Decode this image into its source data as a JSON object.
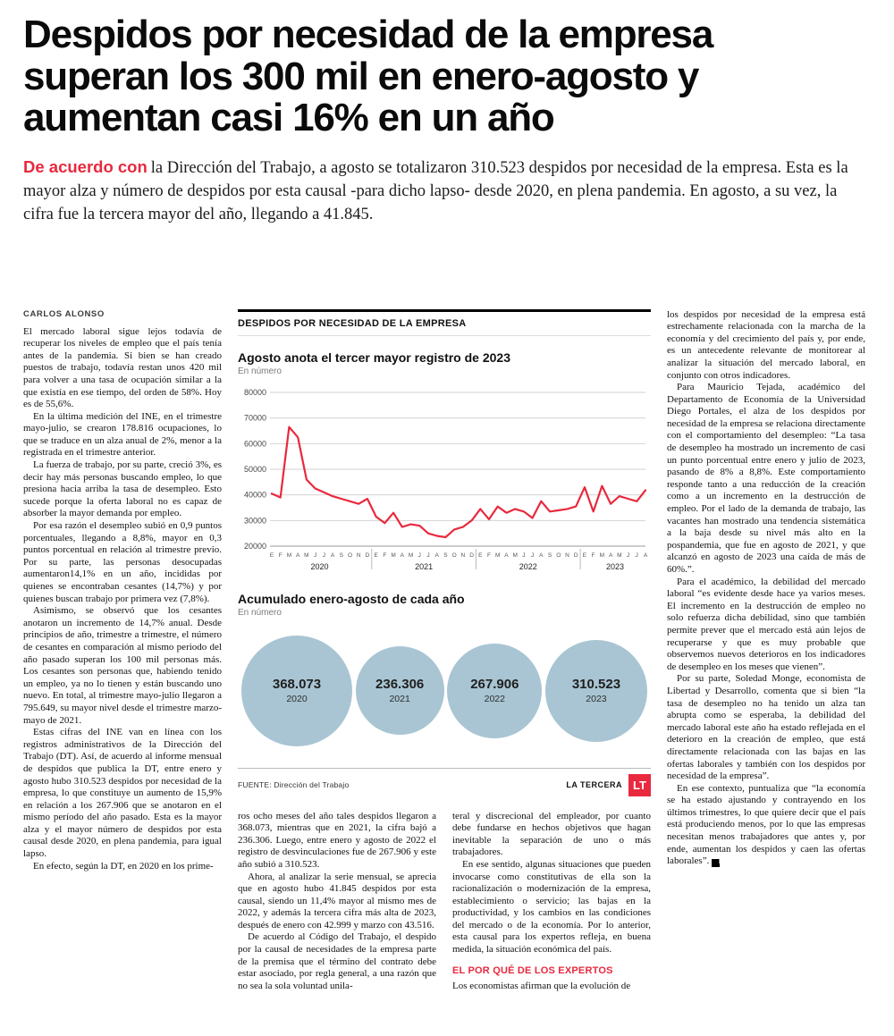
{
  "colors": {
    "accent_red": "#e8293e",
    "bubble_blue": "#a9c5d3"
  },
  "headline": "Despidos por necesidad de la empresa superan los 300 mil en enero-agosto y aumentan casi 16% en un año",
  "lead": {
    "highlight": "De acuerdo con",
    "text": "la Dirección del Trabajo, a agosto se totalizaron 310.523 despidos por necesidad de la empresa. Esta es la mayor alza y número de despidos por esta causal -para dicho lapso- desde 2020, en plena pandemia. En agosto, a su vez, la cifra fue la tercera mayor del año, llegando a 41.845."
  },
  "byline": "CARLOS ALONSO",
  "end_mark": "P",
  "columns": {
    "col1": [
      "El mercado laboral sigue lejos todavía de recuperar los niveles de empleo que el país tenía antes de la pandemia. Si bien se han creado puestos de trabajo, todavía restan unos 420 mil para volver a una tasa de ocupación similar a la que existía en ese tiempo, del orden de 58%. Hoy es de 55,6%.",
      "En la última medición del INE, en el trimestre mayo-julio, se crearon 178.816 ocupaciones, lo que se traduce en un alza anual de 2%, menor a la registrada en el trimestre anterior.",
      "La fuerza de trabajo, por su parte, creció 3%, es decir hay más personas buscando empleo, lo que presiona hacia arriba la tasa de desempleo. Esto sucede porque la oferta laboral no es capaz de absorber la mayor demanda por empleo.",
      "Por esa razón el desempleo subió en 0,9 puntos porcentuales, llegando a 8,8%, mayor en 0,3 puntos porcentual en relación al trimestre previo. Por su parte, las personas desocupadas aumentaron14,1% en un año, incididas por quienes se encontraban cesantes (14,7%) y por quienes buscan trabajo por primera vez (7,8%).",
      "Asimismo, se observó que los cesantes anotaron un incremento de 14,7% anual. Desde principios de año, trimestre a trimestre, el número de cesantes en comparación al mismo periodo del año pasado superan los 100 mil personas más. Los cesantes son personas que, habiendo tenido un empleo, ya no lo tienen y están buscando uno nuevo. En total, al trimestre mayo-julio llegaron a 795.649, su mayor nivel desde el trimestre marzo-mayo de 2021.",
      "Estas cifras del INE van en línea con los registros administrativos de la Dirección del Trabajo (DT). Así, de acuerdo al informe mensual de despidos que publica la DT, entre enero y agosto hubo 310.523 despidos por necesidad de la empresa, lo que constituye un aumento de 15,9% en relación a los 267.906 que se anotaron en el mismo período del año pasado. Esta es la mayor alza y el mayor número de despidos por esta causal desde 2020, en plena pandemia, para igual lapso.",
      "En efecto, según la DT, en 2020 en los prime-"
    ],
    "col2": [
      "ros ocho meses del año tales despidos llegaron a 368.073, mientras que en 2021, la cifra bajó a 236.306. Luego, entre enero y agosto de 2022 el registro de desvinculaciones fue de 267.906 y este año subió a 310.523.",
      "Ahora, al analizar la serie mensual, se aprecia que en agosto hubo 41.845 despidos por esta causal, siendo un 11,4% mayor al mismo mes de 2022, y además la tercera cifra más alta de 2023, después de enero con 42.999 y marzo con 43.516.",
      "De acuerdo al Código del Trabajo, el despido por la causal de necesidades de la empresa parte de la premisa que el término del contrato debe estar asociado, por regla general, a una razón que no sea la sola voluntad unila-"
    ],
    "col3_pre": [
      "teral y discrecional del empleador, por cuanto debe fundarse en hechos objetivos que hagan inevitable la separación de uno o más trabajadores.",
      "En ese sentido, algunas situaciones que pueden invocarse como constitutivas de ella son la racionalización o modernización de la empresa, establecimiento o servicio; las bajas en la productividad, y los cambios en las condiciones del mercado o de la economía. Por lo anterior, esta causal para los expertos refleja, en buena medida, la situación económica del país."
    ],
    "col3_heading": "EL POR QUÉ DE LOS EXPERTOS",
    "col3_post": [
      "Los economistas afirman que la evolución de"
    ],
    "col4": [
      "los despidos por necesidad de la empresa está estrechamente relacionada con la marcha de la economía y del crecimiento del país y, por ende, es un antecedente relevante de monitorear al analizar la situación del mercado laboral, en conjunto con otros indicadores.",
      "Para Mauricio Tejada, académico del Departamento de Economía de la Universidad Diego Portales, el alza de los despidos por necesidad de la empresa se relaciona directamente con el comportamiento del desempleo: “La tasa de desempleo ha mostrado un incremento de casi un punto porcentual entre enero y julio de 2023, pasando de 8% a 8,8%. Este comportamiento responde tanto a una reducción de la creación como a un incremento en la destrucción de empleo. Por el lado de la demanda de trabajo, las vacantes han mostrado una tendencia sistemática a la baja desde su nivel más alto en la pospandemia, que fue en agosto de 2021, y que alcanzó en agosto de 2023 una caída de más de 60%.”.",
      "Para el académico, la debilidad del mercado laboral “es evidente desde hace ya varios meses. El incremento en la destrucción de empleo no solo refuerza dicha debilidad, sino que también permite prever que el mercado está aún lejos de recuperarse y que es muy probable que observemos nuevos deterioros en los indicadores de desempleo en los meses que vienen”.",
      "Por su parte, Soledad Monge, economista de Libertad y Desarrollo, comenta que si bien “la tasa de desempleo no ha tenido un alza tan abrupta como se esperaba, la debilidad del mercado laboral este año ha estado reflejada en el deterioro en la creación de empleo, que está directamente relacionada con las bajas en las ofertas laborales y también con los despidos por necesidad de la empresa”.",
      "En ese contexto, puntualiza que “la economía se ha estado ajustando y contrayendo en los últimos trimestres, lo que quiere decir que el país está produciendo menos, por lo que las empresas necesitan menos trabajadores que antes y, por ende, aumentan los despidos y caen las ofertas laborales”."
    ]
  },
  "chart": {
    "kicker": "DESPIDOS POR NECESIDAD DE LA EMPRESA",
    "source": "FUENTE: Dirección del Trabajo",
    "brand": "LA TERCERA",
    "brand_logo": "LT"
  },
  "chart_data": [
    {
      "type": "line",
      "title": "Agosto anota el tercer mayor registro de 2023",
      "unit": "En número",
      "ylim": [
        20000,
        80000
      ],
      "ytick_step": 10000,
      "grid": true,
      "line_color": "#e8293e",
      "x_labels": [
        "E",
        "F",
        "M",
        "A",
        "M",
        "J",
        "J",
        "A",
        "S",
        "O",
        "N",
        "D",
        "E",
        "F",
        "M",
        "A",
        "M",
        "J",
        "J",
        "A",
        "S",
        "O",
        "N",
        "D",
        "E",
        "F",
        "M",
        "A",
        "M",
        "J",
        "J",
        "A",
        "S",
        "O",
        "N",
        "D",
        "E",
        "F",
        "M",
        "A",
        "M",
        "J",
        "J",
        "A"
      ],
      "year_groups": [
        {
          "label": "2020",
          "from": 0,
          "to": 11
        },
        {
          "label": "2021",
          "from": 12,
          "to": 23
        },
        {
          "label": "2022",
          "from": 24,
          "to": 35
        },
        {
          "label": "2023",
          "from": 36,
          "to": 43
        }
      ],
      "values": [
        40500,
        39000,
        66500,
        62500,
        46000,
        42500,
        41000,
        39500,
        38500,
        37500,
        36500,
        38500,
        31500,
        29000,
        33000,
        27500,
        28500,
        28000,
        25000,
        24000,
        23500,
        26500,
        27500,
        30000,
        34500,
        30500,
        35500,
        33000,
        34500,
        33500,
        31000,
        37562,
        33500,
        34000,
        34500,
        35500,
        42999,
        33500,
        43516,
        36500,
        39500,
        38500,
        37500,
        41845
      ]
    },
    {
      "type": "bubble",
      "title": "Acumulado enero-agosto de cada año",
      "unit": "En número",
      "categories": [
        "2020",
        "2021",
        "2022",
        "2023"
      ],
      "values": [
        368073,
        236306,
        267906,
        310523
      ],
      "labels": [
        "368.073",
        "236.306",
        "267.906",
        "310.523"
      ],
      "bubble_color": "#a9c5d3"
    }
  ]
}
